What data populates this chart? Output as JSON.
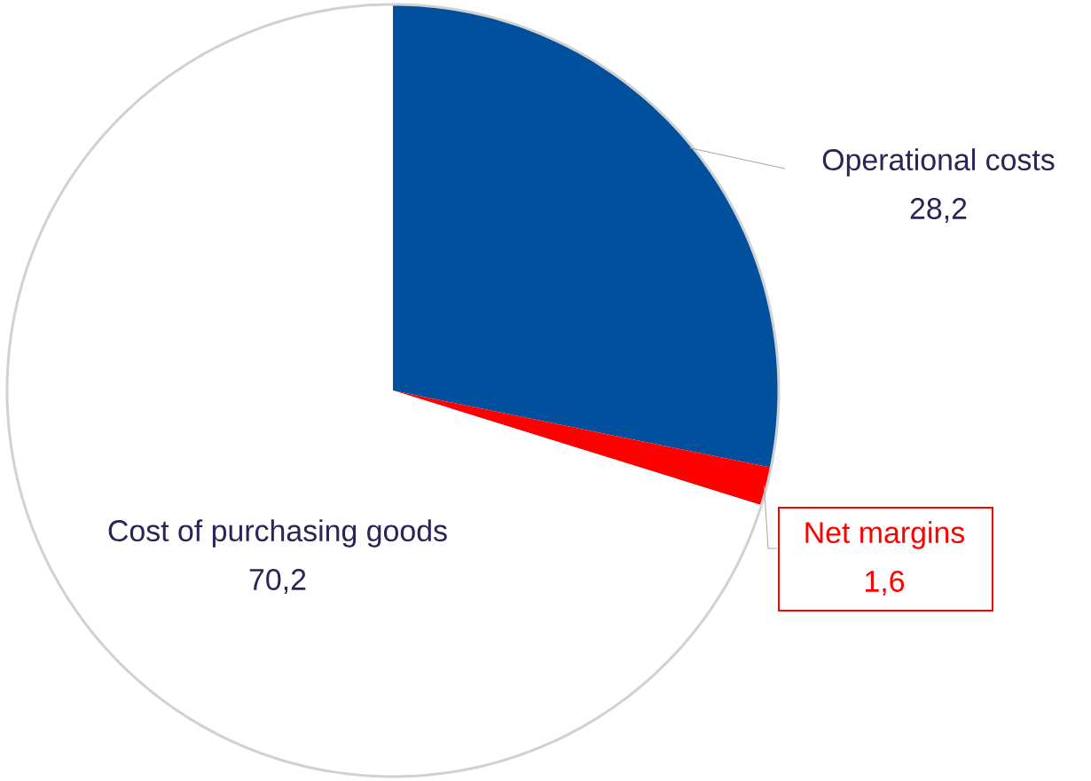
{
  "chart_data": {
    "type": "pie",
    "categories": [
      "Operational costs",
      "Net margins",
      "Cost of purchasing goods"
    ],
    "values": [
      28.2,
      1.6,
      70.2
    ],
    "value_labels": [
      "28,2",
      "1,6",
      "70,2"
    ],
    "colors": [
      "#00509e",
      "#ff0000",
      "#ffffff"
    ]
  }
}
